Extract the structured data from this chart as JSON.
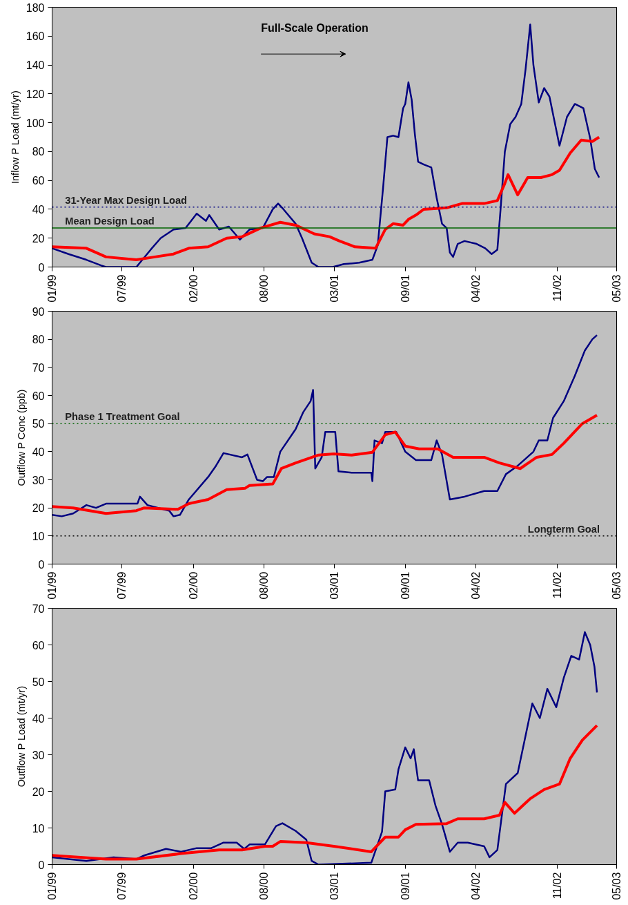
{
  "chart_data": [
    {
      "type": "line",
      "ylabel": "Inflow P Load (mt/yr)",
      "annotations": [
        "Full-Scale Operation"
      ],
      "xlim": [
        "1999-01-01",
        "2003-05-01"
      ],
      "xticks": [
        {
          "value": "1999-01-01",
          "label": "01/99"
        },
        {
          "value": "1999-07-16",
          "label": "07/99"
        },
        {
          "value": "2000-02-01",
          "label": "02/00"
        },
        {
          "value": "2000-08-16",
          "label": "08/00"
        },
        {
          "value": "2001-03-01",
          "label": "03/01"
        },
        {
          "value": "2001-09-16",
          "label": "09/01"
        },
        {
          "value": "2002-04-01",
          "label": "04/02"
        },
        {
          "value": "2002-11-16",
          "label": "11/02"
        },
        {
          "value": "2003-05-01",
          "label": "05/03"
        }
      ],
      "ylim": [
        0,
        180
      ],
      "yticks": [
        0,
        20,
        40,
        60,
        80,
        100,
        120,
        140,
        160,
        180
      ],
      "grid": false,
      "ref_lines": [
        {
          "axis": "y",
          "value": 41.5,
          "label": "31-Year Max Design Load",
          "color": "#000080",
          "line_style": "dotted"
        },
        {
          "axis": "y",
          "value": 27,
          "label": "Mean Design Load",
          "color": "#006400",
          "line_style": "solid"
        }
      ],
      "series": [
        {
          "color": "#000080",
          "x": [
            "1999-01-01",
            "1999-02-16",
            "1999-04-07",
            "1999-05-19",
            "1999-06-01",
            "1999-08-25",
            "1999-10-04",
            "1999-11-01",
            "1999-12-07",
            "2000-01-10",
            "2000-02-10",
            "2000-03-07",
            "2000-03-16",
            "2000-04-13",
            "2000-05-10",
            "2000-06-10",
            "2000-07-07",
            "2000-08-13",
            "2000-09-10",
            "2000-09-25",
            "2000-10-10",
            "2000-11-13",
            "2000-12-01",
            "2000-12-28",
            "2001-01-16",
            "2001-02-25",
            "2001-03-28",
            "2001-05-10",
            "2001-06-16",
            "2001-07-01",
            "2001-07-16",
            "2001-07-28",
            "2001-08-13",
            "2001-08-28",
            "2001-09-10",
            "2001-09-16",
            "2001-09-25",
            "2001-10-04",
            "2001-10-13",
            "2001-10-22",
            "2001-11-07",
            "2001-11-28",
            "2001-12-13",
            "2001-12-28",
            "2002-01-10",
            "2002-01-19",
            "2002-01-28",
            "2002-02-10",
            "2002-03-01",
            "2002-04-04",
            "2002-04-28",
            "2002-05-16",
            "2002-06-01",
            "2002-06-10",
            "2002-06-22",
            "2002-07-07",
            "2002-07-22",
            "2002-08-07",
            "2002-08-19",
            "2002-09-01",
            "2002-09-10",
            "2002-09-25",
            "2002-10-10",
            "2002-10-25",
            "2002-11-22",
            "2002-12-13",
            "2003-01-04",
            "2003-01-28",
            "2003-02-16",
            "2003-03-01",
            "2003-03-13"
          ],
          "values": [
            13,
            9,
            5,
            1,
            0,
            0,
            12,
            20,
            26,
            27,
            37,
            32,
            36,
            26,
            28,
            19,
            26,
            27,
            40,
            44,
            40,
            30,
            20,
            3,
            0,
            0,
            2,
            3,
            5,
            15,
            55,
            90,
            91,
            90,
            110,
            113,
            128,
            116,
            92,
            73,
            71,
            69,
            48,
            30,
            27,
            10,
            7,
            16,
            18,
            16,
            13,
            9,
            12,
            40,
            80,
            99,
            104,
            113,
            137,
            168,
            140,
            114,
            124,
            118,
            84,
            104,
            113,
            110,
            89,
            68,
            62
          ]
        },
        {
          "color": "#ff0000",
          "x": [
            "1999-01-01",
            "1999-04-07",
            "1999-06-01",
            "1999-08-25",
            "1999-10-16",
            "1999-12-07",
            "2000-01-19",
            "2000-03-13",
            "2000-05-04",
            "2000-06-16",
            "2000-08-07",
            "2000-10-01",
            "2000-11-13",
            "2001-01-04",
            "2001-02-16",
            "2001-03-16",
            "2001-04-28",
            "2001-06-25",
            "2001-07-22",
            "2001-08-13",
            "2001-09-10",
            "2001-09-25",
            "2001-10-16",
            "2001-11-07",
            "2002-01-10",
            "2002-02-22",
            "2002-04-25",
            "2002-06-01",
            "2002-06-22",
            "2002-07-01",
            "2002-07-28",
            "2002-08-25",
            "2002-10-01",
            "2002-11-01",
            "2002-11-22",
            "2002-12-22",
            "2003-01-22",
            "2003-02-22",
            "2003-03-13"
          ],
          "values": [
            14,
            13,
            7,
            5,
            7,
            9,
            13,
            14,
            20,
            21,
            27,
            31,
            29,
            23,
            21,
            18,
            14,
            13,
            26,
            30,
            29,
            33,
            36,
            40,
            41,
            44,
            44,
            46,
            58,
            64,
            50,
            62,
            62,
            64,
            67,
            79,
            88,
            87,
            90
          ]
        }
      ]
    },
    {
      "type": "line",
      "ylabel": "Outflow P Conc (ppb)",
      "xlim": [
        "1999-01-01",
        "2003-05-01"
      ],
      "xticks": [
        {
          "value": "1999-01-01",
          "label": "01/99"
        },
        {
          "value": "1999-07-16",
          "label": "07/99"
        },
        {
          "value": "2000-02-01",
          "label": "02/00"
        },
        {
          "value": "2000-08-16",
          "label": "08/00"
        },
        {
          "value": "2001-03-01",
          "label": "03/01"
        },
        {
          "value": "2001-09-16",
          "label": "09/01"
        },
        {
          "value": "2002-04-01",
          "label": "04/02"
        },
        {
          "value": "2002-11-16",
          "label": "11/02"
        },
        {
          "value": "2003-05-01",
          "label": "05/03"
        }
      ],
      "ylim": [
        0,
        90
      ],
      "yticks": [
        0,
        10,
        20,
        30,
        40,
        50,
        60,
        70,
        80,
        90
      ],
      "grid": false,
      "ref_lines": [
        {
          "axis": "y",
          "value": 50,
          "label": "Phase 1 Treatment Goal",
          "color": "#006400",
          "line_style": "dotted"
        },
        {
          "axis": "y",
          "value": 10,
          "label": "Longterm Goal",
          "color": "#000000",
          "line_style": "dotted"
        }
      ],
      "series": [
        {
          "color": "#000080",
          "x": [
            "1999-01-01",
            "1999-01-28",
            "1999-03-01",
            "1999-04-07",
            "1999-05-04",
            "1999-06-01",
            "1999-07-22",
            "1999-08-28",
            "1999-09-04",
            "1999-09-25",
            "1999-10-25",
            "1999-11-25",
            "1999-12-07",
            "1999-12-25",
            "2000-01-19",
            "2000-03-13",
            "2000-04-04",
            "2000-04-25",
            "2000-06-16",
            "2000-07-01",
            "2000-07-28",
            "2000-08-13",
            "2000-08-25",
            "2000-09-13",
            "2000-10-01",
            "2000-11-13",
            "2000-12-04",
            "2000-12-25",
            "2001-01-01",
            "2001-01-07",
            "2001-01-25",
            "2001-02-04",
            "2001-03-04",
            "2001-03-13",
            "2001-04-19",
            "2001-06-13",
            "2001-06-16",
            "2001-06-22",
            "2001-07-13",
            "2001-07-22",
            "2001-08-22",
            "2001-09-16",
            "2001-10-16",
            "2001-11-28",
            "2001-12-13",
            "2001-12-28",
            "2002-01-19",
            "2002-03-01",
            "2002-04-25",
            "2002-06-01",
            "2002-06-25",
            "2002-07-28",
            "2002-09-10",
            "2002-09-25",
            "2002-10-19",
            "2002-11-04",
            "2002-12-04",
            "2003-01-04",
            "2003-02-01",
            "2003-02-22",
            "2003-03-07"
          ],
          "values": [
            17.5,
            17,
            18,
            21,
            20,
            21.5,
            21.5,
            21.5,
            24,
            21,
            20,
            19,
            17,
            17.5,
            23,
            31,
            35,
            39.5,
            38,
            39,
            30,
            29.5,
            31,
            31,
            40,
            48,
            54,
            58,
            62,
            34,
            38,
            47,
            47,
            33,
            32.5,
            32.5,
            29.5,
            44,
            43,
            47,
            47,
            40,
            37,
            37,
            44,
            39,
            23,
            24,
            26,
            26,
            32,
            35,
            40,
            44,
            44,
            52,
            58,
            67,
            76,
            80,
            81.5
          ]
        },
        {
          "color": "#ff0000",
          "x": [
            "1999-01-01",
            "1999-03-01",
            "1999-06-01",
            "1999-08-25",
            "1999-09-16",
            "1999-12-19",
            "2000-01-19",
            "2000-03-13",
            "2000-05-04",
            "2000-06-25",
            "2000-07-07",
            "2000-09-10",
            "2000-10-04",
            "2000-11-13",
            "2001-01-16",
            "2001-02-28",
            "2001-04-19",
            "2001-06-16",
            "2001-07-22",
            "2001-08-19",
            "2001-09-16",
            "2001-10-25",
            "2001-12-16",
            "2002-01-28",
            "2002-04-25",
            "2002-06-07",
            "2002-08-04",
            "2002-09-19",
            "2002-11-01",
            "2002-12-04",
            "2003-01-25",
            "2003-03-07"
          ],
          "values": [
            20.5,
            20,
            18,
            19,
            20,
            19.5,
            21.5,
            23,
            26.5,
            27,
            28,
            28.5,
            34,
            36,
            38.8,
            39.2,
            38.8,
            39.8,
            46,
            47,
            42,
            41,
            41,
            38,
            38,
            36,
            34,
            38,
            39,
            43,
            50,
            53
          ]
        }
      ]
    },
    {
      "type": "line",
      "ylabel": "Outflow P Load (mt/yr)",
      "xlim": [
        "1999-01-01",
        "2003-05-01"
      ],
      "xticks": [
        {
          "value": "1999-01-01",
          "label": "01/99"
        },
        {
          "value": "1999-07-16",
          "label": "07/99"
        },
        {
          "value": "2000-02-01",
          "label": "02/00"
        },
        {
          "value": "2000-08-16",
          "label": "08/00"
        },
        {
          "value": "2001-03-01",
          "label": "03/01"
        },
        {
          "value": "2001-09-16",
          "label": "09/01"
        },
        {
          "value": "2002-04-01",
          "label": "04/02"
        },
        {
          "value": "2002-11-16",
          "label": "11/02"
        },
        {
          "value": "2003-05-01",
          "label": "05/03"
        }
      ],
      "ylim": [
        0,
        70
      ],
      "yticks": [
        0,
        10,
        20,
        30,
        40,
        50,
        60,
        70
      ],
      "grid": false,
      "series": [
        {
          "color": "#000080",
          "x": [
            "1999-01-01",
            "1999-04-07",
            "1999-06-22",
            "1999-08-25",
            "1999-09-16",
            "1999-11-16",
            "1999-12-28",
            "2000-02-10",
            "2000-03-22",
            "2000-04-25",
            "2000-06-01",
            "2000-06-22",
            "2000-07-07",
            "2000-08-19",
            "2000-09-19",
            "2000-10-07",
            "2000-11-13",
            "2000-12-13",
            "2000-12-28",
            "2001-01-16",
            "2001-06-13",
            "2001-07-13",
            "2001-07-22",
            "2001-08-19",
            "2001-08-28",
            "2001-09-16",
            "2001-10-01",
            "2001-10-10",
            "2001-10-22",
            "2001-11-22",
            "2001-12-10",
            "2001-12-28",
            "2002-01-19",
            "2002-02-10",
            "2002-03-10",
            "2002-04-25",
            "2002-05-10",
            "2002-06-01",
            "2002-06-25",
            "2002-07-28",
            "2002-09-07",
            "2002-09-28",
            "2002-10-19",
            "2002-11-13",
            "2002-12-04",
            "2002-12-25",
            "2003-01-16",
            "2003-02-01",
            "2003-02-16",
            "2003-02-28",
            "2003-03-07"
          ],
          "values": [
            2,
            1,
            2,
            1.5,
            2.5,
            4.3,
            3.5,
            4.5,
            4.5,
            6,
            6,
            4.3,
            5.5,
            5.5,
            10.5,
            11.3,
            9.2,
            6.8,
            1,
            0,
            0.5,
            9,
            20,
            20.5,
            26,
            32,
            29,
            31.5,
            23,
            23,
            16,
            11,
            3.5,
            6,
            6,
            5,
            2,
            4,
            22,
            25,
            44,
            40,
            48,
            43,
            51,
            57,
            56,
            63.5,
            60,
            54,
            47
          ]
        },
        {
          "color": "#ff0000",
          "x": [
            "1999-01-01",
            "1999-06-01",
            "1999-08-25",
            "1999-12-28",
            "2000-04-13",
            "2000-06-16",
            "2000-08-19",
            "2000-09-10",
            "2000-10-01",
            "2000-12-13",
            "2001-02-28",
            "2001-06-13",
            "2001-07-22",
            "2001-08-28",
            "2001-09-16",
            "2001-10-16",
            "2002-01-10",
            "2002-02-10",
            "2002-04-25",
            "2002-06-07",
            "2002-06-22",
            "2002-07-19",
            "2002-09-01",
            "2002-10-10",
            "2002-11-22",
            "2002-12-22",
            "2003-01-25",
            "2003-03-07"
          ],
          "values": [
            2.5,
            1.5,
            1.5,
            3,
            4,
            4,
            5,
            5,
            6.3,
            6,
            5,
            3.5,
            7.5,
            7.5,
            9.5,
            11,
            11.2,
            12.5,
            12.5,
            13.5,
            17,
            14,
            18,
            20.5,
            22,
            29,
            34,
            38
          ]
        }
      ]
    }
  ]
}
